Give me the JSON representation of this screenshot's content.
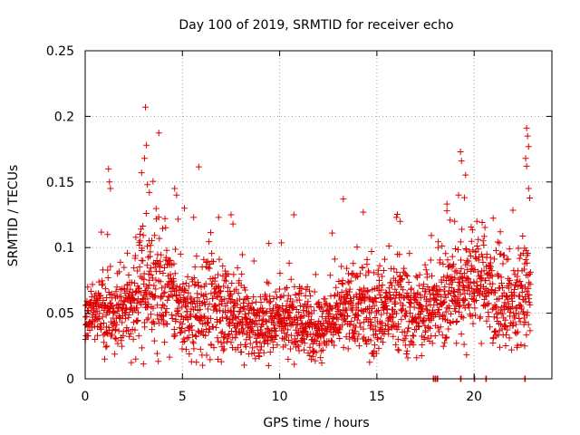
{
  "chart_data": {
    "type": "scatter",
    "title": "Day 100 of 2019, SRMTID for receiver echo",
    "xlabel": "GPS time / hours",
    "ylabel": "SRMTID / TECUs",
    "xlim": [
      0,
      24
    ],
    "ylim": [
      0,
      0.25
    ],
    "x_ticks": [
      0,
      5,
      10,
      15,
      20
    ],
    "x_tick_labels": [
      "0",
      "5",
      "10",
      "15",
      "20"
    ],
    "y_ticks": [
      0,
      0.05,
      0.1,
      0.15,
      0.2,
      0.25
    ],
    "y_tick_labels": [
      "0",
      "0.05",
      "0.1",
      "0.15",
      "0.2",
      "0.25"
    ],
    "grid": true,
    "marker": "+",
    "color": "#dd0000",
    "series": [
      {
        "name": "SRMTID",
        "profile": {
          "x": [
            0,
            1,
            2,
            3,
            4,
            5,
            6,
            7,
            8,
            9,
            10,
            11,
            12,
            13,
            14,
            15,
            16,
            17,
            18,
            19,
            20,
            21,
            22,
            22.9
          ],
          "median": [
            0.05,
            0.055,
            0.052,
            0.07,
            0.07,
            0.05,
            0.055,
            0.06,
            0.045,
            0.04,
            0.05,
            0.045,
            0.04,
            0.05,
            0.055,
            0.05,
            0.055,
            0.05,
            0.055,
            0.065,
            0.08,
            0.065,
            0.055,
            0.065
          ],
          "spread": [
            0.01,
            0.015,
            0.015,
            0.025,
            0.025,
            0.015,
            0.02,
            0.02,
            0.015,
            0.012,
            0.015,
            0.015,
            0.012,
            0.015,
            0.018,
            0.015,
            0.018,
            0.015,
            0.015,
            0.02,
            0.02,
            0.02,
            0.015,
            0.02
          ]
        },
        "outliers": [
          {
            "x": 1.2,
            "y": 0.16
          },
          {
            "x": 1.25,
            "y": 0.15
          },
          {
            "x": 1.3,
            "y": 0.145
          },
          {
            "x": 1.15,
            "y": 0.11
          },
          {
            "x": 3.1,
            "y": 0.207
          },
          {
            "x": 3.15,
            "y": 0.178
          },
          {
            "x": 3.05,
            "y": 0.168
          },
          {
            "x": 2.9,
            "y": 0.157
          },
          {
            "x": 3.2,
            "y": 0.148
          },
          {
            "x": 3.3,
            "y": 0.142
          },
          {
            "x": 4.6,
            "y": 0.145
          },
          {
            "x": 4.7,
            "y": 0.14
          },
          {
            "x": 5.1,
            "y": 0.13
          },
          {
            "x": 7.5,
            "y": 0.125
          },
          {
            "x": 7.6,
            "y": 0.118
          },
          {
            "x": 14.3,
            "y": 0.127
          },
          {
            "x": 16.0,
            "y": 0.123
          },
          {
            "x": 16.2,
            "y": 0.12
          },
          {
            "x": 18.6,
            "y": 0.128
          },
          {
            "x": 19.2,
            "y": 0.14
          },
          {
            "x": 19.3,
            "y": 0.173
          },
          {
            "x": 19.35,
            "y": 0.166
          },
          {
            "x": 19.5,
            "y": 0.138
          },
          {
            "x": 19.0,
            "y": 0.12
          },
          {
            "x": 22.7,
            "y": 0.191
          },
          {
            "x": 22.75,
            "y": 0.185
          },
          {
            "x": 22.8,
            "y": 0.177
          },
          {
            "x": 22.65,
            "y": 0.168
          },
          {
            "x": 22.7,
            "y": 0.162
          },
          {
            "x": 22.8,
            "y": 0.145
          },
          {
            "x": 22.6,
            "y": 0.025
          },
          {
            "x": 1.0,
            "y": 0.015
          },
          {
            "x": 2.6,
            "y": 0.015
          },
          {
            "x": 7.0,
            "y": 0.013
          },
          {
            "x": 0.5,
            "y": 0.03
          },
          {
            "x": 9.0,
            "y": 0.022
          }
        ],
        "zero_points": [
          17.9,
          18.0,
          18.1,
          19.3,
          20.0,
          20.6,
          22.6
        ]
      }
    ]
  }
}
